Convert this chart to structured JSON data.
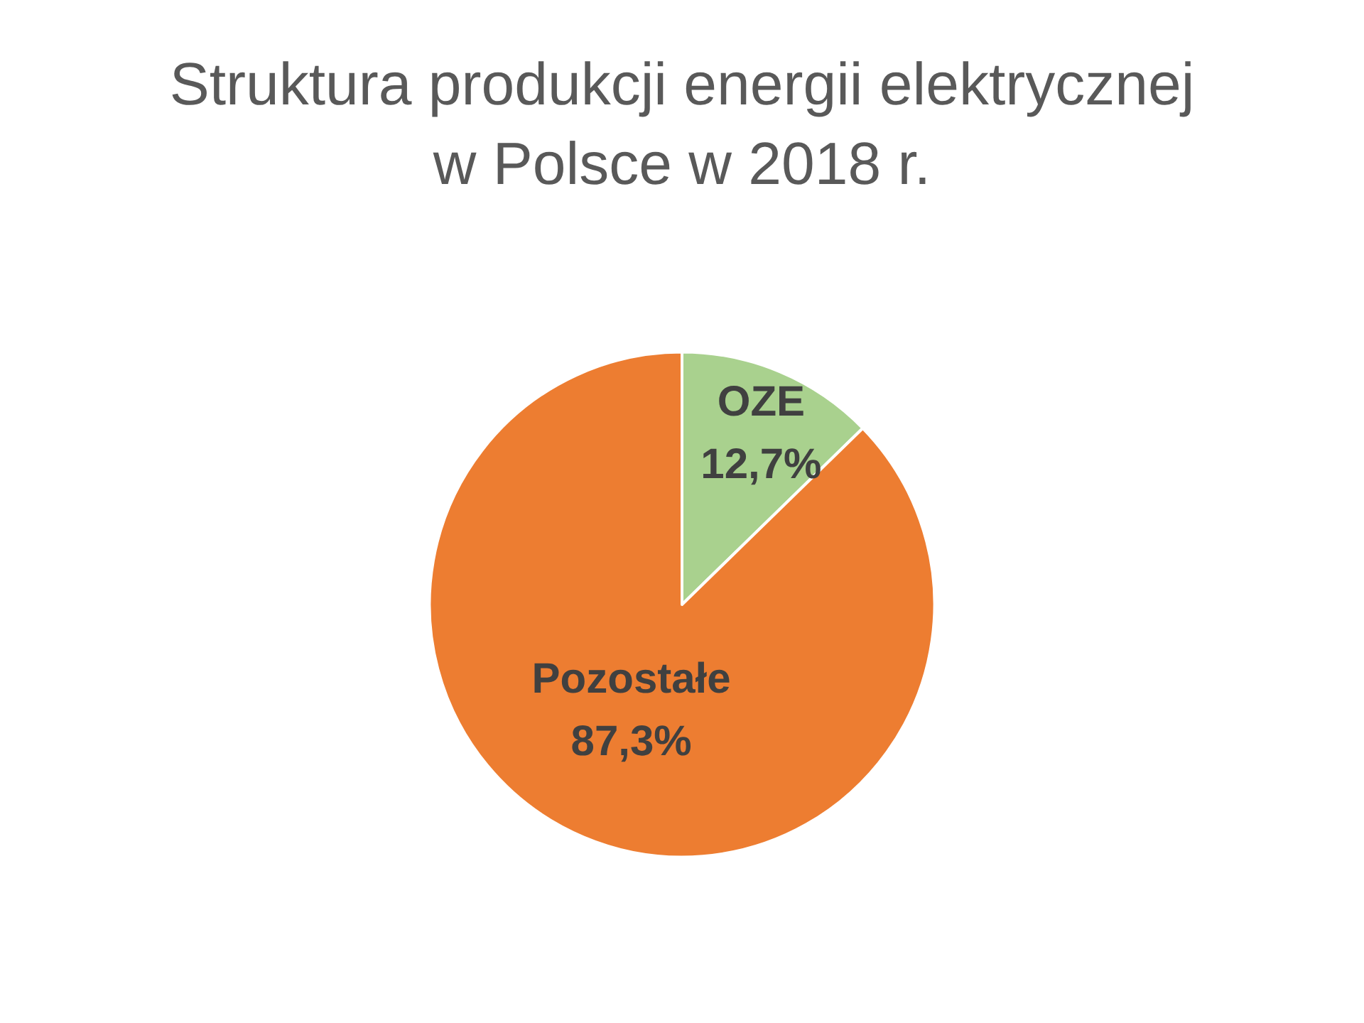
{
  "chart_data": {
    "type": "pie",
    "title": "Struktura produkcji energii elektrycznej\nw Polsce w 2018 r.",
    "categories": [
      "OZE",
      "Pozostałe"
    ],
    "values": [
      12.7,
      87.3
    ],
    "colors": [
      "#a9d18e",
      "#ed7d31"
    ],
    "value_labels": [
      "12,7%",
      "87,3%"
    ],
    "legend": false
  }
}
